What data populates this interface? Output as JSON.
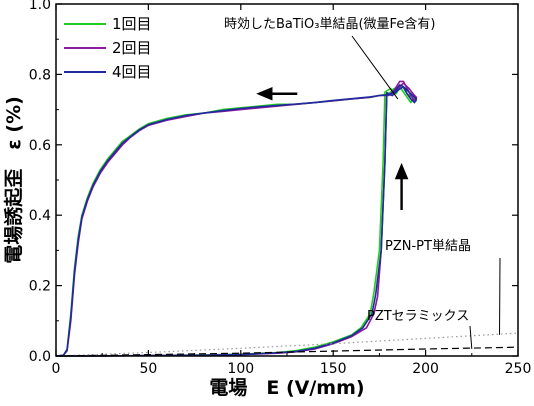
{
  "chart_data": {
    "type": "line",
    "xlabel": "電場　E (V/mm)",
    "ylabel": "電場誘起歪　ε (%)",
    "xlim": [
      0,
      250
    ],
    "ylim": [
      0,
      1.0
    ],
    "x_ticks": [
      "0",
      "50",
      "100",
      "150",
      "200",
      "250"
    ],
    "y_ticks": [
      "0.0",
      "0.2",
      "0.4",
      "0.6",
      "0.8",
      "1.0"
    ],
    "grid": false,
    "legend_position": "top-left",
    "series": [
      {
        "name": "1回目",
        "color": "#22cc22",
        "values": [
          [
            0,
            0.0
          ],
          [
            4,
            0.002
          ],
          [
            6,
            0.02
          ],
          [
            8,
            0.12
          ],
          [
            10,
            0.25
          ],
          [
            12,
            0.34
          ],
          [
            14,
            0.4
          ],
          [
            17,
            0.45
          ],
          [
            20,
            0.49
          ],
          [
            24,
            0.53
          ],
          [
            28,
            0.56
          ],
          [
            32,
            0.585
          ],
          [
            36,
            0.61
          ],
          [
            40,
            0.625
          ],
          [
            45,
            0.645
          ],
          [
            50,
            0.66
          ],
          [
            60,
            0.675
          ],
          [
            70,
            0.685
          ],
          [
            80,
            0.69
          ],
          [
            90,
            0.7
          ],
          [
            100,
            0.705
          ],
          [
            110,
            0.71
          ],
          [
            120,
            0.715
          ],
          [
            130,
            0.715
          ],
          [
            140,
            0.72
          ],
          [
            150,
            0.725
          ],
          [
            160,
            0.73
          ],
          [
            170,
            0.735
          ],
          [
            175,
            0.74
          ],
          [
            180,
            0.745
          ],
          [
            183,
            0.76
          ],
          [
            186,
            0.765
          ],
          [
            188,
            0.75
          ],
          [
            190,
            0.735
          ],
          [
            192,
            0.72
          ],
          [
            194,
            0.74
          ],
          [
            195,
            0.725
          ],
          [
            194,
            0.73
          ],
          [
            190,
            0.745
          ],
          [
            187,
            0.77
          ],
          [
            184,
            0.745
          ],
          [
            181,
            0.76
          ],
          [
            178,
            0.75
          ],
          [
            177,
            0.55
          ],
          [
            175,
            0.3
          ],
          [
            172,
            0.18
          ],
          [
            170,
            0.12
          ],
          [
            165,
            0.08
          ],
          [
            160,
            0.06
          ],
          [
            150,
            0.04
          ],
          [
            140,
            0.025
          ],
          [
            130,
            0.015
          ],
          [
            120,
            0.01
          ],
          [
            100,
            0.005
          ],
          [
            80,
            0.003
          ],
          [
            50,
            0.001
          ],
          [
            20,
            0.0
          ],
          [
            0,
            0.0
          ]
        ]
      },
      {
        "name": "2回目",
        "color": "#8a1a9e",
        "values": [
          [
            0,
            0.0
          ],
          [
            4,
            0.002
          ],
          [
            6,
            0.015
          ],
          [
            8,
            0.1
          ],
          [
            10,
            0.23
          ],
          [
            12,
            0.32
          ],
          [
            14,
            0.39
          ],
          [
            17,
            0.44
          ],
          [
            20,
            0.48
          ],
          [
            24,
            0.52
          ],
          [
            28,
            0.55
          ],
          [
            32,
            0.575
          ],
          [
            36,
            0.6
          ],
          [
            40,
            0.62
          ],
          [
            45,
            0.64
          ],
          [
            50,
            0.655
          ],
          [
            60,
            0.67
          ],
          [
            70,
            0.68
          ],
          [
            80,
            0.69
          ],
          [
            90,
            0.695
          ],
          [
            100,
            0.7
          ],
          [
            110,
            0.705
          ],
          [
            120,
            0.71
          ],
          [
            130,
            0.715
          ],
          [
            140,
            0.72
          ],
          [
            150,
            0.725
          ],
          [
            160,
            0.73
          ],
          [
            170,
            0.735
          ],
          [
            175,
            0.74
          ],
          [
            180,
            0.74
          ],
          [
            183,
            0.755
          ],
          [
            186,
            0.78
          ],
          [
            188,
            0.78
          ],
          [
            190,
            0.76
          ],
          [
            192,
            0.74
          ],
          [
            194,
            0.725
          ],
          [
            195,
            0.735
          ],
          [
            194,
            0.74
          ],
          [
            191,
            0.76
          ],
          [
            188,
            0.775
          ],
          [
            185,
            0.76
          ],
          [
            182,
            0.74
          ],
          [
            179,
            0.745
          ],
          [
            178,
            0.55
          ],
          [
            176,
            0.3
          ],
          [
            174,
            0.17
          ],
          [
            172,
            0.12
          ],
          [
            168,
            0.08
          ],
          [
            160,
            0.055
          ],
          [
            150,
            0.035
          ],
          [
            140,
            0.02
          ],
          [
            130,
            0.012
          ],
          [
            120,
            0.008
          ],
          [
            100,
            0.004
          ],
          [
            80,
            0.002
          ],
          [
            50,
            0.001
          ],
          [
            20,
            0.0
          ],
          [
            0,
            0.0
          ]
        ]
      },
      {
        "name": "4回目",
        "color": "#1f2a9e",
        "values": [
          [
            0,
            0.0
          ],
          [
            4,
            0.002
          ],
          [
            6,
            0.018
          ],
          [
            8,
            0.11
          ],
          [
            10,
            0.24
          ],
          [
            12,
            0.33
          ],
          [
            14,
            0.395
          ],
          [
            17,
            0.445
          ],
          [
            20,
            0.485
          ],
          [
            24,
            0.525
          ],
          [
            28,
            0.555
          ],
          [
            32,
            0.58
          ],
          [
            36,
            0.605
          ],
          [
            40,
            0.622
          ],
          [
            45,
            0.642
          ],
          [
            50,
            0.657
          ],
          [
            60,
            0.672
          ],
          [
            70,
            0.683
          ],
          [
            80,
            0.69
          ],
          [
            90,
            0.697
          ],
          [
            100,
            0.703
          ],
          [
            110,
            0.708
          ],
          [
            120,
            0.712
          ],
          [
            130,
            0.716
          ],
          [
            140,
            0.72
          ],
          [
            150,
            0.726
          ],
          [
            160,
            0.731
          ],
          [
            170,
            0.736
          ],
          [
            175,
            0.74
          ],
          [
            180,
            0.742
          ],
          [
            183,
            0.75
          ],
          [
            186,
            0.77
          ],
          [
            188,
            0.765
          ],
          [
            190,
            0.745
          ],
          [
            192,
            0.73
          ],
          [
            194,
            0.72
          ],
          [
            195,
            0.73
          ],
          [
            194,
            0.735
          ],
          [
            191,
            0.75
          ],
          [
            188,
            0.765
          ],
          [
            185,
            0.755
          ],
          [
            182,
            0.74
          ],
          [
            179,
            0.748
          ],
          [
            178,
            0.55
          ],
          [
            176,
            0.3
          ],
          [
            173,
            0.175
          ],
          [
            171,
            0.12
          ],
          [
            166,
            0.08
          ],
          [
            160,
            0.058
          ],
          [
            150,
            0.037
          ],
          [
            140,
            0.022
          ],
          [
            130,
            0.013
          ],
          [
            120,
            0.009
          ],
          [
            100,
            0.004
          ],
          [
            80,
            0.002
          ],
          [
            50,
            0.001
          ],
          [
            20,
            0.0
          ],
          [
            0,
            0.0
          ]
        ]
      },
      {
        "name": "PZN-PT単結晶",
        "color": "#999999",
        "dash": "dotted",
        "values": [
          [
            0,
            0.0
          ],
          [
            50,
            0.01
          ],
          [
            100,
            0.022
          ],
          [
            150,
            0.035
          ],
          [
            200,
            0.05
          ],
          [
            250,
            0.065
          ]
        ]
      },
      {
        "name": "PZTセラミックス",
        "color": "#000000",
        "dash": "dashed",
        "values": [
          [
            0,
            0.0
          ],
          [
            50,
            0.004
          ],
          [
            100,
            0.008
          ],
          [
            150,
            0.014
          ],
          [
            200,
            0.02
          ],
          [
            250,
            0.025
          ]
        ]
      }
    ],
    "annotations": [
      {
        "text": "時効したBaTiO₃単結晶(微量Fe含有)",
        "points_to": [
          185,
          0.73
        ]
      },
      {
        "text": "PZN-PT単結晶",
        "points_to": [
          240,
          0.06
        ]
      },
      {
        "text": "PZTセラミックス",
        "points_to": [
          225,
          0.02
        ]
      }
    ],
    "arrows": [
      {
        "direction": "left",
        "at": [
          110,
          0.745
        ]
      },
      {
        "direction": "up",
        "at": [
          187,
          0.5
        ]
      }
    ]
  }
}
